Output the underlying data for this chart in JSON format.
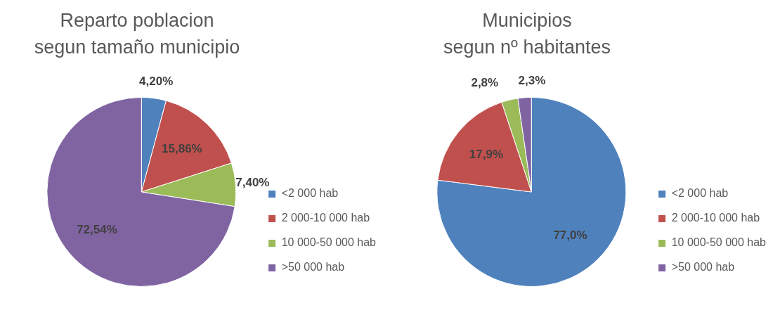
{
  "chart_data": [
    {
      "type": "pie",
      "title": "Reparto poblacion\nsegun tamaño municipio",
      "categories": [
        "<2 000 hab",
        "2 000-10 000 hab",
        "10 000-50 000 hab",
        ">50 000 hab"
      ],
      "values": [
        4.2,
        15.86,
        7.4,
        72.54
      ],
      "value_labels": [
        "4,20%",
        "15,86%",
        "7,40%",
        "72,54%"
      ],
      "colors": [
        "#4f81bd",
        "#c0504d",
        "#9bbb59",
        "#8064a2"
      ],
      "legend": "right"
    },
    {
      "type": "pie",
      "title": "Municipios\nsegun nº habitantes",
      "categories": [
        "<2 000 hab",
        "2 000-10 000 hab",
        "10 000-50 000 hab",
        ">50 000 hab"
      ],
      "values": [
        77.0,
        17.9,
        2.8,
        2.3
      ],
      "value_labels": [
        "77,0%",
        "17,9%",
        "2,8%",
        "2,3%"
      ],
      "colors": [
        "#4f81bd",
        "#c0504d",
        "#9bbb59",
        "#8064a2"
      ],
      "legend": "right"
    }
  ]
}
